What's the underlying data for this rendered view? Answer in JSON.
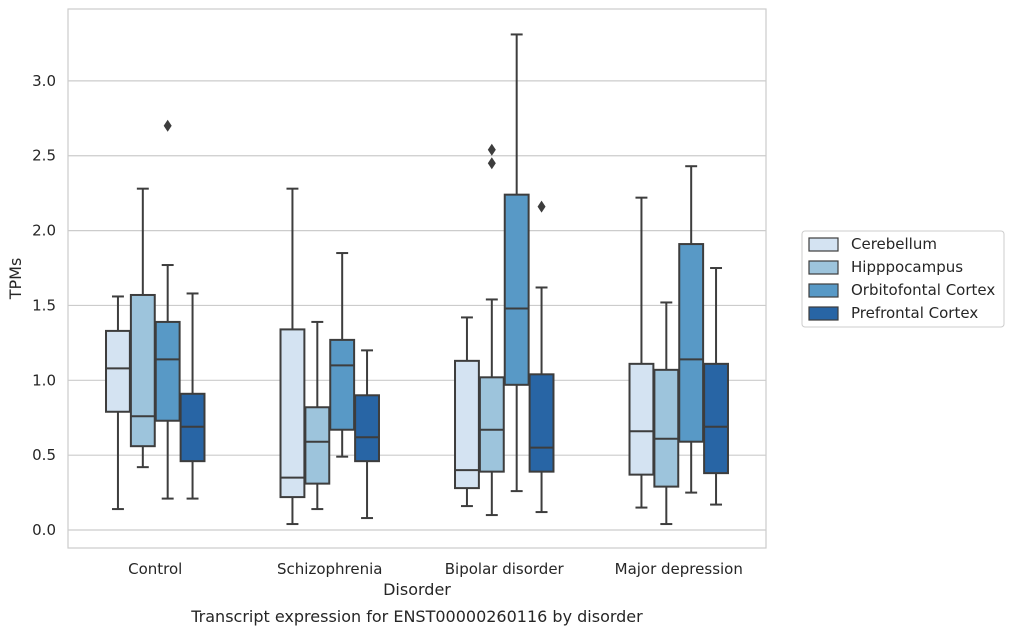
{
  "chart_data": {
    "type": "box",
    "xlabel": "Disorder",
    "ylabel": "TPMs",
    "caption": "Transcript expression for ENST00000260116 by disorder",
    "categories": [
      "Control",
      "Schizophrenia",
      "Bipolar disorder",
      "Major depression"
    ],
    "ylim": [
      -0.12,
      3.48
    ],
    "yticks": [
      0.0,
      0.5,
      1.0,
      1.5,
      2.0,
      2.5,
      3.0
    ],
    "ytick_labels": [
      "0.0",
      "0.5",
      "1.0",
      "1.5",
      "2.0",
      "2.5",
      "3.0"
    ],
    "grid": true,
    "legend_position": "right",
    "series": [
      {
        "name": "Cerebellum",
        "color": "#d4e3f2",
        "boxes": [
          {
            "whislo": 0.14,
            "q1": 0.79,
            "med": 1.08,
            "q3": 1.33,
            "whishi": 1.56,
            "fliers": []
          },
          {
            "whislo": 0.04,
            "q1": 0.22,
            "med": 0.35,
            "q3": 1.34,
            "whishi": 2.28,
            "fliers": []
          },
          {
            "whislo": 0.16,
            "q1": 0.28,
            "med": 0.4,
            "q3": 1.13,
            "whishi": 1.42,
            "fliers": []
          },
          {
            "whislo": 0.15,
            "q1": 0.37,
            "med": 0.66,
            "q3": 1.11,
            "whishi": 2.22,
            "fliers": []
          }
        ]
      },
      {
        "name": "Hipppocampus",
        "color": "#9dc4dc",
        "boxes": [
          {
            "whislo": 0.42,
            "q1": 0.56,
            "med": 0.76,
            "q3": 1.57,
            "whishi": 2.28,
            "fliers": []
          },
          {
            "whislo": 0.14,
            "q1": 0.31,
            "med": 0.59,
            "q3": 0.82,
            "whishi": 1.39,
            "fliers": []
          },
          {
            "whislo": 0.1,
            "q1": 0.39,
            "med": 0.67,
            "q3": 1.02,
            "whishi": 1.54,
            "fliers": [
              2.45,
              2.54
            ]
          },
          {
            "whislo": 0.04,
            "q1": 0.29,
            "med": 0.61,
            "q3": 1.07,
            "whishi": 1.52,
            "fliers": []
          }
        ]
      },
      {
        "name": "Orbitofontal Cortex",
        "color": "#5899c6",
        "boxes": [
          {
            "whislo": 0.21,
            "q1": 0.73,
            "med": 1.14,
            "q3": 1.39,
            "whishi": 1.77,
            "fliers": [
              2.7
            ]
          },
          {
            "whislo": 0.49,
            "q1": 0.67,
            "med": 1.1,
            "q3": 1.27,
            "whishi": 1.85,
            "fliers": []
          },
          {
            "whislo": 0.26,
            "q1": 0.97,
            "med": 1.48,
            "q3": 2.24,
            "whishi": 3.31,
            "fliers": []
          },
          {
            "whislo": 0.25,
            "q1": 0.59,
            "med": 1.14,
            "q3": 1.91,
            "whishi": 2.43,
            "fliers": []
          }
        ]
      },
      {
        "name": "Prefrontal Cortex",
        "color": "#2865a5",
        "boxes": [
          {
            "whislo": 0.21,
            "q1": 0.46,
            "med": 0.69,
            "q3": 0.91,
            "whishi": 1.58,
            "fliers": []
          },
          {
            "whislo": 0.08,
            "q1": 0.46,
            "med": 0.62,
            "q3": 0.9,
            "whishi": 1.2,
            "fliers": []
          },
          {
            "whislo": 0.12,
            "q1": 0.39,
            "med": 0.55,
            "q3": 1.04,
            "whishi": 1.62,
            "fliers": [
              2.16
            ]
          },
          {
            "whislo": 0.17,
            "q1": 0.38,
            "med": 0.69,
            "q3": 1.11,
            "whishi": 1.75,
            "fliers": []
          }
        ]
      }
    ]
  }
}
